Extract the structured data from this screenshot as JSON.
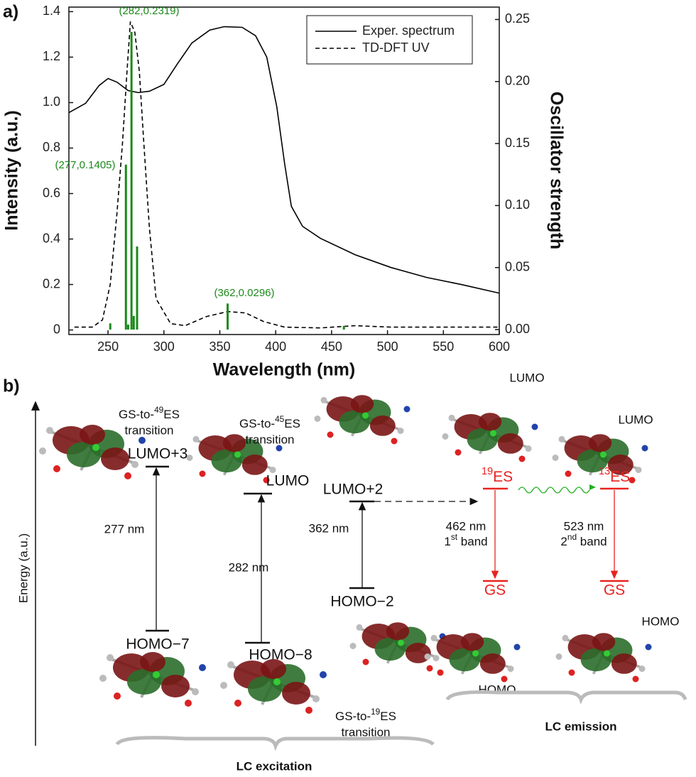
{
  "chart_data": {
    "type": "line",
    "panel_label": "a)",
    "x_label": "Wavelength (nm)",
    "y_label": "Intensity (a.u.)",
    "y2_label": "Oscillator strength",
    "xlim": [
      215,
      600
    ],
    "xticks": [
      250,
      300,
      350,
      400,
      450,
      500,
      550,
      600
    ],
    "ylim": [
      -0.02,
      1.42
    ],
    "yticks": [
      0,
      0.2,
      0.4,
      0.6,
      0.8,
      {
        "value": 1,
        "label": "1.0"
      },
      1.2,
      1.4
    ],
    "y2lim": [
      -0.004,
      0.26
    ],
    "y2ticks": [
      {
        "value": 0,
        "label": "0.00"
      },
      {
        "value": 0.05,
        "label": "0.05"
      },
      {
        "value": 0.1,
        "label": "0.10"
      },
      {
        "value": 0.15,
        "label": "0.15"
      },
      {
        "value": 0.2,
        "label": "0.20"
      },
      {
        "value": 0.25,
        "label": "0.25"
      }
    ],
    "legend": "upper right",
    "series": [
      {
        "name": "Exper. spectrum",
        "color": "#000000",
        "line_style": "solid",
        "x": [
          215,
          230,
          242,
          250,
          258,
          268,
          277,
          287,
          300,
          312,
          325,
          341,
          354,
          370,
          382,
          392,
          401,
          408,
          414,
          424,
          440,
          471,
          503,
          535,
          566,
          600
        ],
        "values": [
          0.956,
          0.997,
          1.075,
          1.106,
          1.09,
          1.053,
          1.044,
          1.05,
          1.08,
          1.17,
          1.262,
          1.319,
          1.334,
          1.331,
          1.294,
          1.2,
          0.981,
          0.731,
          0.544,
          0.456,
          0.403,
          0.331,
          0.275,
          0.231,
          0.2,
          0.162
        ]
      },
      {
        "name": "TD-DFT UV",
        "color": "#000000",
        "line_style": "dashed",
        "x": [
          220,
          236,
          245,
          252,
          258,
          263,
          267,
          270,
          274,
          278,
          282,
          287,
          293,
          306,
          319,
          338,
          357,
          373,
          389,
          408,
          440,
          471,
          503,
          600
        ],
        "values": [
          0.0125,
          0.0125,
          0.044,
          0.2,
          0.513,
          0.825,
          1.138,
          1.356,
          1.309,
          1.138,
          0.825,
          0.45,
          0.1375,
          0.028,
          0.019,
          0.059,
          0.081,
          0.075,
          0.0375,
          0.0125,
          0.009,
          0.019,
          0.0125,
          0.0125
        ]
      },
      {
        "type": "bar",
        "axis": "y2",
        "color": "#1a8a1a",
        "x": [
          252,
          266,
          268,
          271,
          273,
          276,
          357,
          461
        ],
        "values": [
          0.005,
          0.133,
          0.004,
          0.24,
          0.011,
          0.067,
          0.021,
          0.003
        ]
      }
    ],
    "annotations": [
      "(282,0.2319)",
      "(277,0.1405)",
      "(362,0.0296)"
    ]
  },
  "diagram": {
    "panel_label": "b)",
    "energy_axis": "Energy (a.u.)",
    "transitions": [
      {
        "pre": "GS-to-",
        "sup": "49",
        "post": "ES",
        "line2": "transition"
      },
      {
        "pre": "GS-to-",
        "sup": "45",
        "post": "ES",
        "line2": "transition"
      },
      {
        "pre": "GS-to-",
        "sup": "19",
        "post": "ES",
        "line2": "transition"
      }
    ],
    "levels": [
      "LUMO+3",
      "LUMO",
      "LUMO+2",
      "HOMO−7",
      "HOMO−8",
      "HOMO−2"
    ],
    "excitations": [
      "277 nm",
      "282 nm",
      "362 nm"
    ],
    "states": [
      {
        "sup": "19",
        "post": "ES"
      },
      {
        "sup": "13",
        "post": "ES"
      },
      "GS",
      "GS"
    ],
    "emissions": [
      {
        "line1": "462 nm",
        "pre": "1",
        "sup": "st",
        "post": " band"
      },
      {
        "line1": "523 nm",
        "pre": "2",
        "sup": "nd",
        "post": " band"
      }
    ],
    "orbital_labels": [
      "LUMO",
      "LUMO",
      "HOMO",
      "HOMO"
    ],
    "groups": [
      "LC excitation",
      "LC emission"
    ]
  }
}
